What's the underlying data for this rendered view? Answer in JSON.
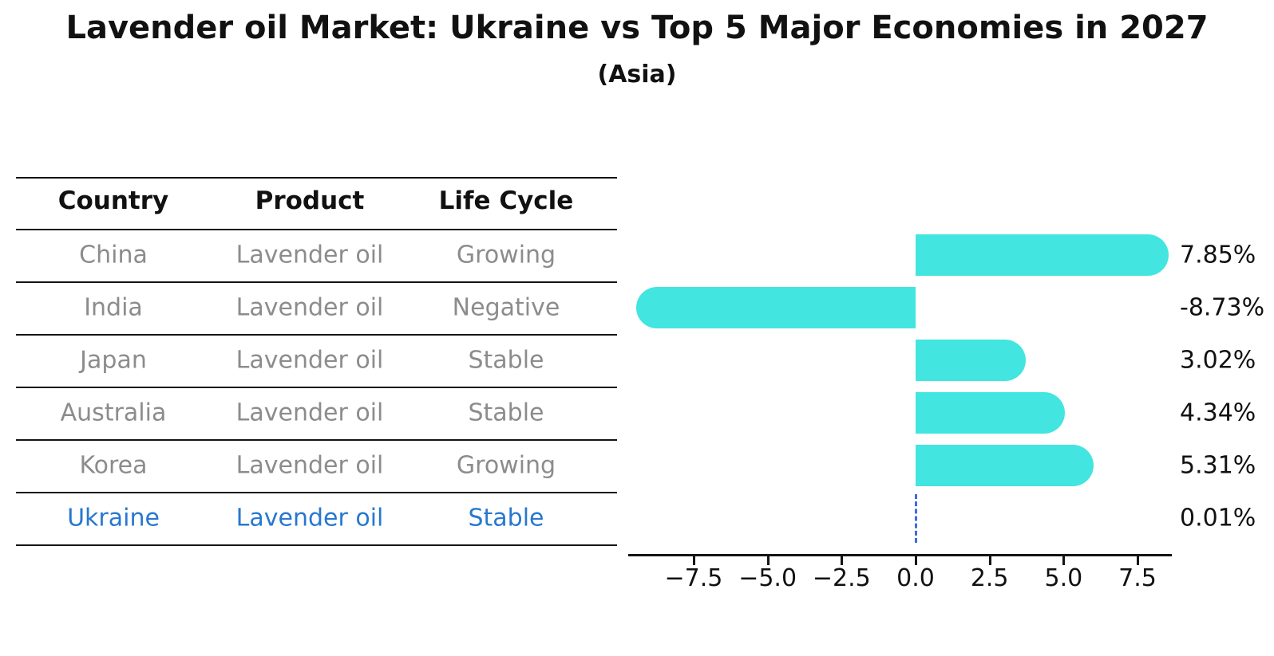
{
  "title": "Lavender oil Market: Ukraine vs Top 5 Major Economies in 2027",
  "subtitle": "(Asia)",
  "table": {
    "headers": [
      "Country",
      "Product",
      "Life Cycle"
    ],
    "rows": [
      {
        "country": "China",
        "product": "Lavender oil",
        "life_cycle": "Growing",
        "highlight": false
      },
      {
        "country": "India",
        "product": "Lavender oil",
        "life_cycle": "Negative",
        "highlight": false
      },
      {
        "country": "Japan",
        "product": "Lavender oil",
        "life_cycle": "Stable",
        "highlight": false
      },
      {
        "country": "Australia",
        "product": "Lavender oil",
        "life_cycle": "Stable",
        "highlight": false
      },
      {
        "country": "Korea",
        "product": "Lavender oil",
        "life_cycle": "Growing",
        "highlight": false
      },
      {
        "country": "Ukraine",
        "product": "Lavender oil",
        "life_cycle": "Stable",
        "highlight": true
      }
    ]
  },
  "chart_data": {
    "type": "bar",
    "orientation": "horizontal",
    "title": "Lavender oil Market: Ukraine vs Top 5 Major Economies in 2027",
    "subtitle": "(Asia)",
    "categories": [
      "China",
      "India",
      "Japan",
      "Australia",
      "Korea",
      "Ukraine"
    ],
    "values": [
      7.85,
      -8.73,
      3.02,
      4.34,
      5.31,
      0.01
    ],
    "value_labels": [
      "7.85%",
      "-8.73%",
      "3.02%",
      "4.34%",
      "5.31%",
      "0.01%"
    ],
    "xticks": [
      -7.5,
      -5.0,
      -2.5,
      0.0,
      2.5,
      5.0,
      7.5
    ],
    "xtick_labels": [
      "−7.5",
      "−5.0",
      "−2.5",
      "0.0",
      "2.5",
      "5.0",
      "7.5"
    ],
    "xlim": [
      -9.7,
      8.7
    ],
    "grid": false,
    "legend": false,
    "highlight_category": "Ukraine",
    "zero_marker": "dashed-line"
  },
  "colors": {
    "bar": "#42E5E0",
    "dashed_line": "#4169E1",
    "highlight_text": "#2878CF",
    "row_text": "#8c8c8c",
    "line": "#141414"
  }
}
